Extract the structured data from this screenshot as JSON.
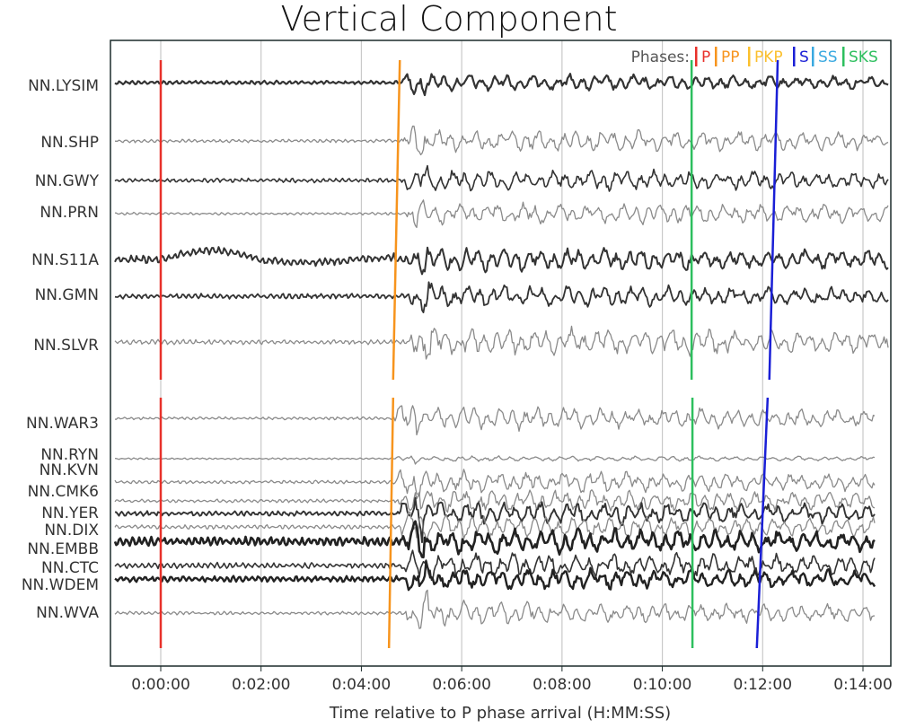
{
  "chart_data": {
    "type": "line",
    "title": "Vertical Component",
    "xlabel": "Time relative to P phase arrival (H:MM:SS)",
    "ylabel": "",
    "x_ticks": [
      "0:00:00",
      "0:02:00",
      "0:04:00",
      "0:06:00",
      "0:08:00",
      "0:10:00",
      "0:12:00",
      "0:14:00"
    ],
    "x_tick_seconds": [
      0,
      120,
      240,
      360,
      480,
      600,
      720,
      840
    ],
    "xlim_seconds": [
      -60,
      850
    ],
    "grid": "vertical",
    "legend": {
      "placement": "top-right",
      "title": "Phases:",
      "entries": [
        {
          "label": "P",
          "color": "#e8312a"
        },
        {
          "label": "PP",
          "color": "#f7941d"
        },
        {
          "label": "PKP",
          "color": "#fbc02d"
        },
        {
          "label": "S",
          "color": "#1a1fd6"
        },
        {
          "label": "SS",
          "color": "#39a9e0"
        },
        {
          "label": "SKS",
          "color": "#2dbf5e"
        }
      ]
    },
    "groups": [
      {
        "stations": [
          "NN.LYSIM",
          "NN.SHP",
          "NN.GWY",
          "NN.PRN",
          "NN.S11A",
          "NN.GMN",
          "NN.SLVR"
        ],
        "phase_picks": [
          {
            "phase": "P",
            "top_s": 0,
            "bottom_s": 0
          },
          {
            "phase": "PP",
            "top_s": 286,
            "bottom_s": 278
          },
          {
            "phase": "SKS",
            "top_s": 635,
            "bottom_s": 635
          },
          {
            "phase": "S",
            "top_s": 738,
            "bottom_s": 728
          }
        ]
      },
      {
        "stations": [
          "NN.WAR3",
          "NN.RYN",
          "NN.KVN",
          "NN.CMK6",
          "NN.YER",
          "NN.DIX",
          "NN.EMBB",
          "NN.CTC",
          "NN.WDEM",
          "NN.WVA"
        ],
        "phase_picks": [
          {
            "phase": "P",
            "top_s": 0,
            "bottom_s": 0
          },
          {
            "phase": "PP",
            "top_s": 278,
            "bottom_s": 273
          },
          {
            "phase": "SKS",
            "top_s": 636,
            "bottom_s": 636
          },
          {
            "phase": "S",
            "top_s": 726,
            "bottom_s": 713
          }
        ]
      }
    ]
  },
  "colors": {
    "trace_dark": "#333333",
    "trace_light": "#8a8a8a",
    "grid": "#c9c9c9",
    "frame": "#1c2b2b"
  }
}
